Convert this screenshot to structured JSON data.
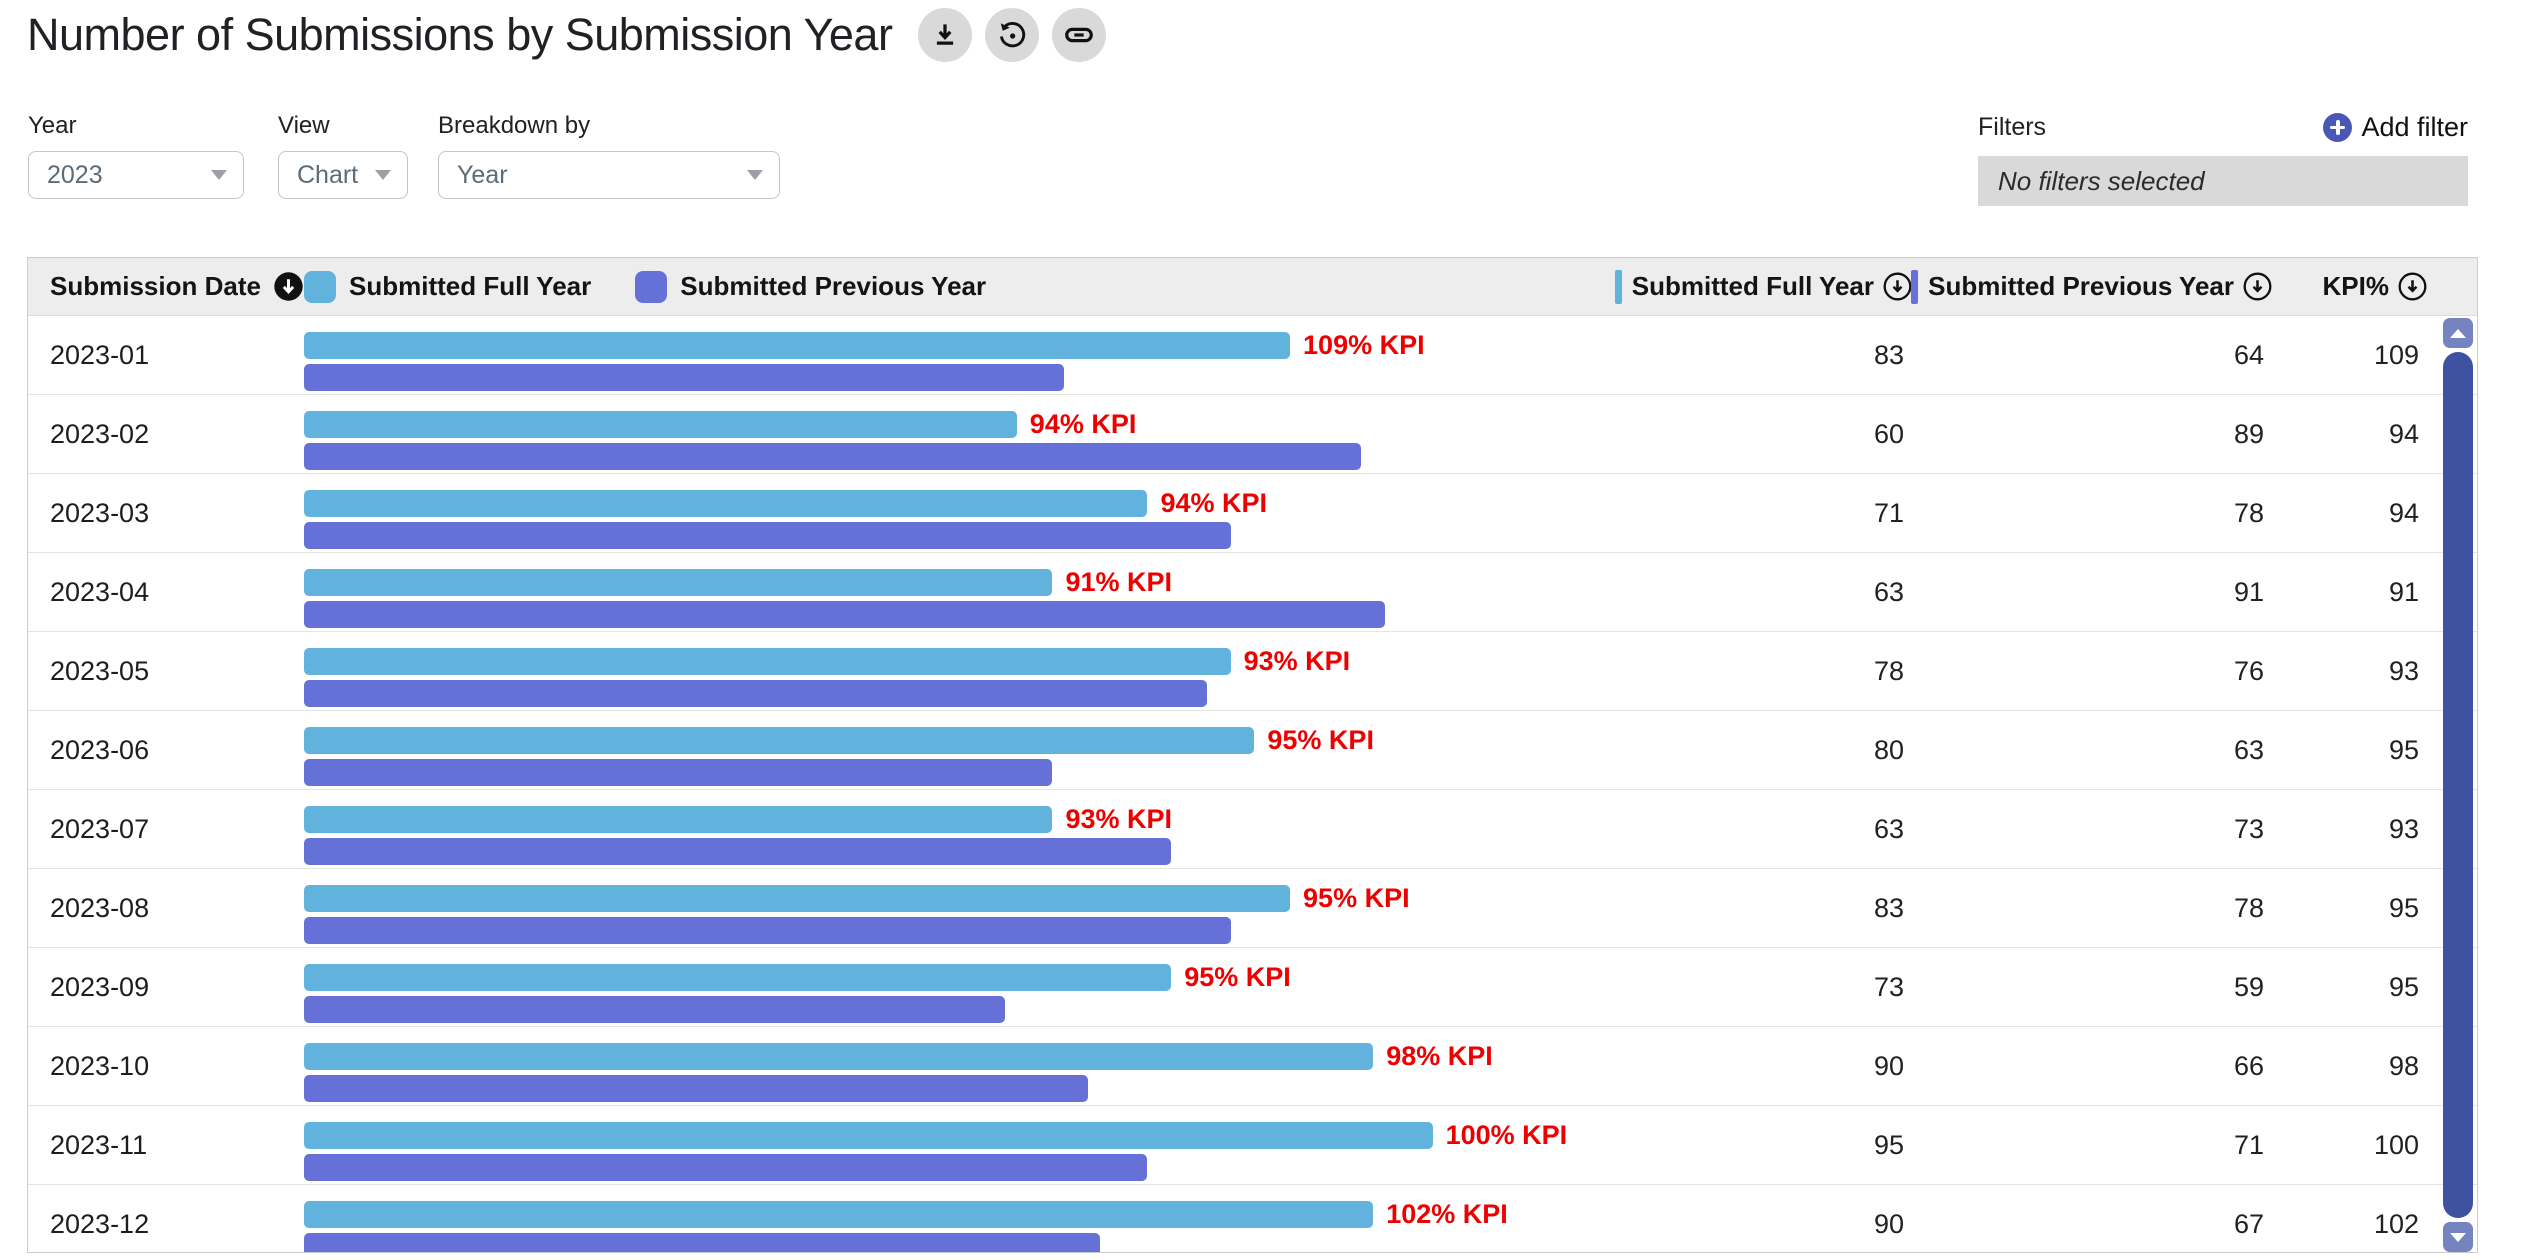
{
  "header": {
    "title": "Number of Submissions by Submission Year"
  },
  "controls": {
    "year": {
      "label": "Year",
      "value": "2023"
    },
    "view": {
      "label": "View",
      "value": "Chart"
    },
    "breakdown": {
      "label": "Breakdown by",
      "value": "Year"
    }
  },
  "filters": {
    "label": "Filters",
    "add_label": "Add filter",
    "empty_text": "No filters selected",
    "add_icon_color": "#4a58b5"
  },
  "table": {
    "date_header": "Submission Date",
    "legend": [
      {
        "label": "Submitted Full Year",
        "color": "#61b2dd"
      },
      {
        "label": "Submitted Previous Year",
        "color": "#6671d8"
      }
    ],
    "value_headers": [
      {
        "label": "Submitted Full Year",
        "color": "#61b2dd"
      },
      {
        "label": "Submitted Previous Year",
        "color": "#6671d8"
      },
      {
        "label": "KPI%",
        "color": null
      }
    ]
  },
  "rows": [
    {
      "month": "2023-01",
      "full": 83,
      "prev": 64,
      "kpi": 109,
      "kpi_label": "109% KPI"
    },
    {
      "month": "2023-02",
      "full": 60,
      "prev": 89,
      "kpi": 94,
      "kpi_label": "94% KPI"
    },
    {
      "month": "2023-03",
      "full": 71,
      "prev": 78,
      "kpi": 94,
      "kpi_label": "94% KPI"
    },
    {
      "month": "2023-04",
      "full": 63,
      "prev": 91,
      "kpi": 91,
      "kpi_label": "91% KPI"
    },
    {
      "month": "2023-05",
      "full": 78,
      "prev": 76,
      "kpi": 93,
      "kpi_label": "93% KPI"
    },
    {
      "month": "2023-06",
      "full": 80,
      "prev": 63,
      "kpi": 95,
      "kpi_label": "95% KPI"
    },
    {
      "month": "2023-07",
      "full": 63,
      "prev": 73,
      "kpi": 93,
      "kpi_label": "93% KPI"
    },
    {
      "month": "2023-08",
      "full": 83,
      "prev": 78,
      "kpi": 95,
      "kpi_label": "95% KPI"
    },
    {
      "month": "2023-09",
      "full": 73,
      "prev": 59,
      "kpi": 95,
      "kpi_label": "95% KPI"
    },
    {
      "month": "2023-10",
      "full": 90,
      "prev": 66,
      "kpi": 98,
      "kpi_label": "98% KPI"
    },
    {
      "month": "2023-11",
      "full": 95,
      "prev": 71,
      "kpi": 100,
      "kpi_label": "100% KPI"
    },
    {
      "month": "2023-12",
      "full": 90,
      "prev": 67,
      "kpi": 102,
      "kpi_label": "102% KPI"
    }
  ],
  "chart_data": {
    "type": "bar",
    "orientation": "horizontal",
    "title": "Number of Submissions by Submission Year",
    "categories": [
      "2023-01",
      "2023-02",
      "2023-03",
      "2023-04",
      "2023-05",
      "2023-06",
      "2023-07",
      "2023-08",
      "2023-09",
      "2023-10",
      "2023-11",
      "2023-12"
    ],
    "series": [
      {
        "name": "Submitted Full Year",
        "color": "#61b2dd",
        "values": [
          83,
          60,
          71,
          63,
          78,
          80,
          63,
          83,
          73,
          90,
          95,
          90
        ]
      },
      {
        "name": "Submitted Previous Year",
        "color": "#6671d8",
        "values": [
          64,
          89,
          78,
          91,
          76,
          63,
          73,
          78,
          59,
          66,
          71,
          67
        ]
      }
    ],
    "kpi_percent": [
      109,
      94,
      94,
      91,
      93,
      95,
      93,
      95,
      95,
      98,
      100,
      102
    ],
    "annotations": [
      "109% KPI",
      "94% KPI",
      "94% KPI",
      "91% KPI",
      "93% KPI",
      "95% KPI",
      "93% KPI",
      "95% KPI",
      "95% KPI",
      "98% KPI",
      "100% KPI",
      "102% KPI"
    ],
    "annotation_color": "#ef0000",
    "xlim": [
      0,
      100
    ],
    "grid": false,
    "legend_position": "top"
  }
}
